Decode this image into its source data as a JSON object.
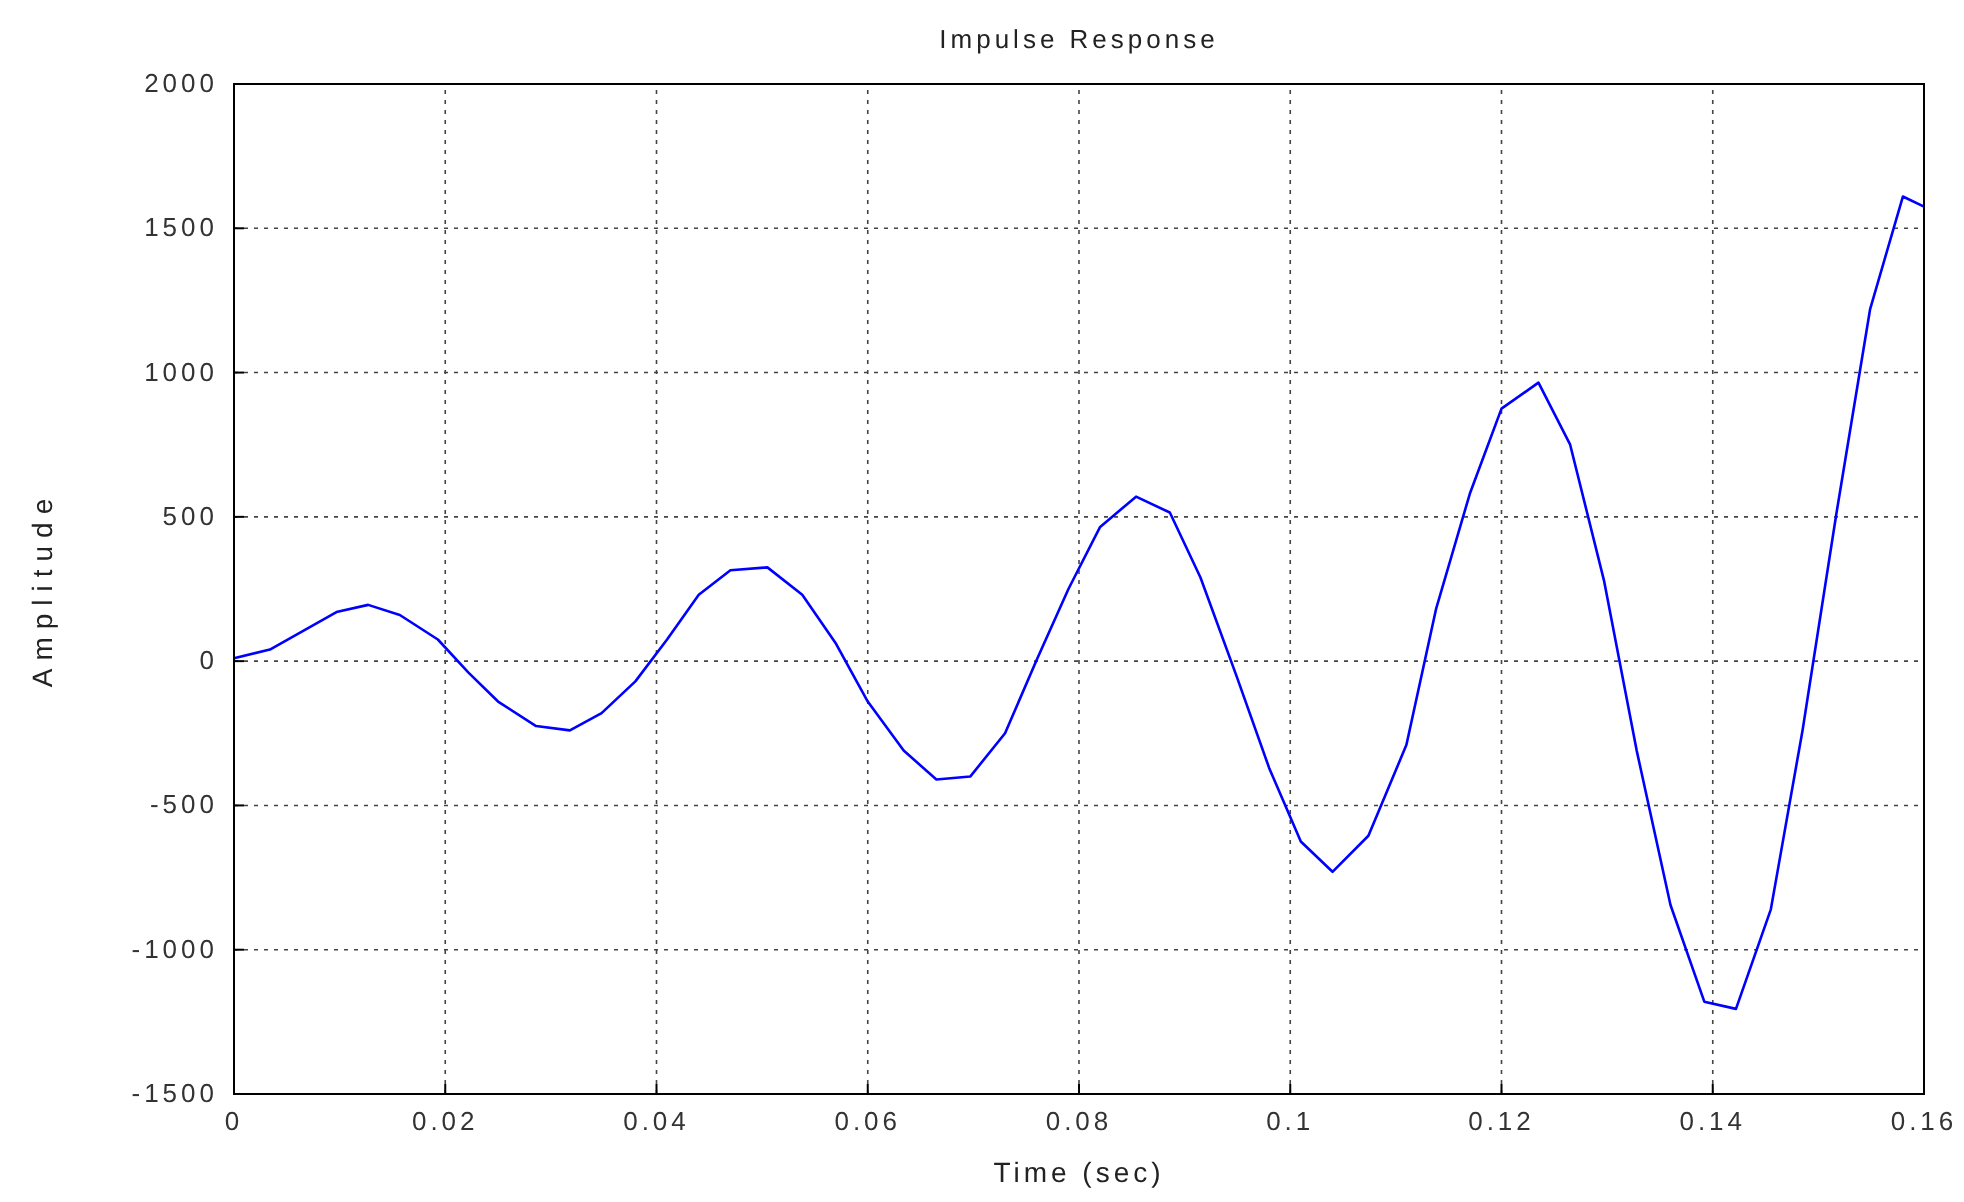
{
  "chart_data": {
    "type": "line",
    "title": "Impulse Response",
    "xlabel": "Time (sec)",
    "ylabel": "Amplitude",
    "x": [
      0,
      0.0034,
      0.0097,
      0.0127,
      0.0157,
      0.0193,
      0.0222,
      0.025,
      0.0286,
      0.0318,
      0.0348,
      0.038,
      0.041,
      0.044,
      0.047,
      0.0505,
      0.0538,
      0.057,
      0.06,
      0.0634,
      0.0665,
      0.0697,
      0.073,
      0.076,
      0.079,
      0.082,
      0.0854,
      0.0886,
      0.0915,
      0.0949,
      0.098,
      0.101,
      0.104,
      0.1074,
      0.111,
      0.1138,
      0.117,
      0.12,
      0.1235,
      0.1265,
      0.1297,
      0.1328,
      0.136,
      0.1392,
      0.1422,
      0.1455,
      0.1485,
      0.1517,
      0.1549,
      0.158,
      0.16
    ],
    "series": [
      {
        "color": "#0000ff",
        "values": [
          10,
          40,
          170,
          195,
          160,
          75,
          -40,
          -140,
          -225,
          -240,
          -180,
          -70,
          75,
          230,
          315,
          325,
          230,
          60,
          -140,
          -310,
          -410,
          -400,
          -250,
          5,
          250,
          465,
          570,
          515,
          290,
          -50,
          -370,
          -625,
          -730,
          -605,
          -290,
          180,
          580,
          875,
          965,
          750,
          280,
          -310,
          -845,
          -1180,
          -1205,
          -860,
          -240,
          510,
          1220,
          1610,
          1575
        ]
      }
    ],
    "xlim": [
      0,
      0.16
    ],
    "xticks": [
      0,
      0.02,
      0.04,
      0.06,
      0.08,
      0.1,
      0.12,
      0.14,
      0.16
    ],
    "ylim": [
      -1500,
      2000
    ],
    "yticks": [
      -1500,
      -1000,
      -500,
      0,
      500,
      1000,
      1500,
      2000
    ],
    "grid": true,
    "line_style": "solid",
    "marker": "none"
  }
}
